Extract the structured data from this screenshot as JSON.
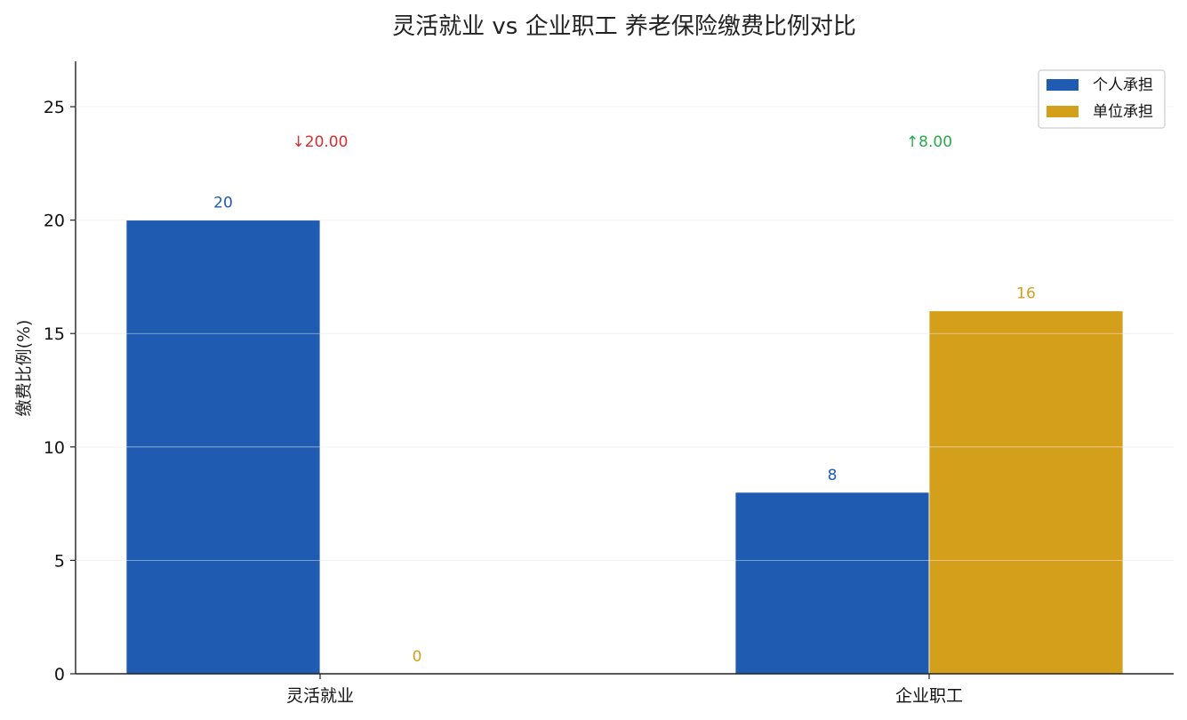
{
  "chart_data": {
    "type": "bar",
    "title": "灵活就业 vs 企业职工 养老保险缴费比例对比",
    "xlabel": "",
    "ylabel": "缴费比例(%)",
    "categories": [
      "灵活就业",
      "企业职工"
    ],
    "series": [
      {
        "name": "个人承担",
        "values": [
          20,
          8
        ],
        "color": "#1f5bb0"
      },
      {
        "name": "单位承担",
        "values": [
          0,
          16
        ],
        "color": "#d4a01c"
      }
    ],
    "ylim": [
      0,
      27
    ],
    "yticks": [
      0,
      5,
      10,
      15,
      20,
      25
    ],
    "data_labels": [
      [
        "20",
        "8"
      ],
      [
        "0",
        "16"
      ]
    ],
    "annotations": [
      {
        "category": "灵活就业",
        "text": "↓20.00",
        "color": "#d62f2f"
      },
      {
        "category": "企业职工",
        "text": "↑8.00",
        "color": "#2aaa4a"
      }
    ],
    "grid": true,
    "legend_position": "top-right"
  }
}
